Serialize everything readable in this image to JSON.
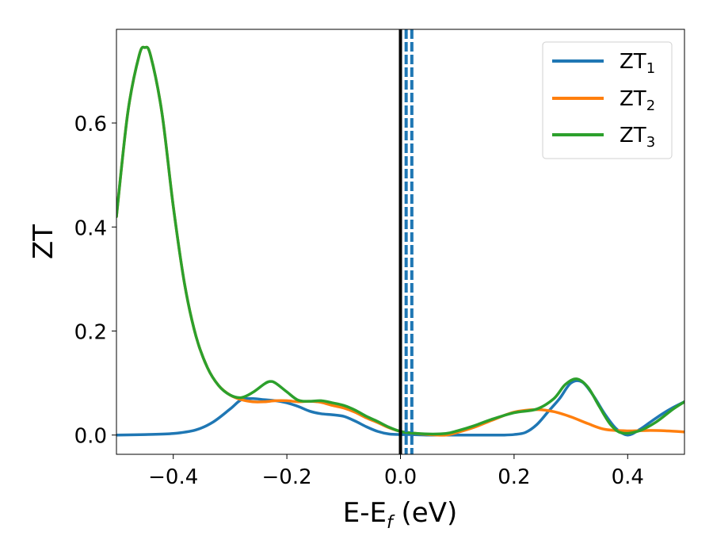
{
  "chart_data": {
    "type": "line",
    "xlabel": "E-E",
    "xlabel_sub": "f",
    "xlabel_unit": " (eV)",
    "ylabel": "ZT",
    "xlim": [
      -0.5,
      0.5
    ],
    "ylim": [
      -0.037,
      0.78
    ],
    "xticks": [
      -0.4,
      -0.2,
      0.0,
      0.2,
      0.4
    ],
    "xtick_labels": [
      "−0.4",
      "−0.2",
      "0.0",
      "0.2",
      "0.4"
    ],
    "yticks": [
      0.0,
      0.2,
      0.4,
      0.6
    ],
    "ytick_labels": [
      "0.0",
      "0.2",
      "0.4",
      "0.6"
    ],
    "grid": false,
    "legend_position": "top-right",
    "vertical_lines": [
      {
        "x": 0.0,
        "style": "solid",
        "color": "#000000"
      },
      {
        "x": 0.01,
        "style": "dashed",
        "color": "#1f77b4"
      },
      {
        "x": 0.02,
        "style": "dashed",
        "color": "#1f77b4"
      }
    ],
    "series": [
      {
        "name": "ZT",
        "name_sub": "1",
        "color": "#1f77b4",
        "x": [
          -0.5,
          -0.45,
          -0.4,
          -0.36,
          -0.33,
          -0.3,
          -0.28,
          -0.26,
          -0.24,
          -0.22,
          -0.2,
          -0.18,
          -0.16,
          -0.14,
          -0.12,
          -0.1,
          -0.08,
          -0.06,
          -0.04,
          -0.02,
          0.0,
          0.02,
          0.05,
          0.1,
          0.15,
          0.18,
          0.2,
          0.22,
          0.24,
          0.26,
          0.28,
          0.3,
          0.32,
          0.34,
          0.36,
          0.38,
          0.4,
          0.42,
          0.44,
          0.46,
          0.48,
          0.5
        ],
        "y": [
          0.0,
          0.001,
          0.003,
          0.01,
          0.025,
          0.05,
          0.068,
          0.07,
          0.068,
          0.066,
          0.062,
          0.055,
          0.046,
          0.041,
          0.039,
          0.036,
          0.027,
          0.016,
          0.007,
          0.002,
          0.001,
          0.001,
          0.0,
          0.0,
          0.0,
          0.0,
          0.001,
          0.005,
          0.02,
          0.045,
          0.07,
          0.1,
          0.102,
          0.075,
          0.04,
          0.012,
          0.0,
          0.01,
          0.025,
          0.04,
          0.053,
          0.064
        ]
      },
      {
        "name": "ZT",
        "name_sub": "2",
        "color": "#ff7f0e",
        "x": [
          -0.5,
          -0.48,
          -0.46,
          -0.45,
          -0.44,
          -0.42,
          -0.4,
          -0.38,
          -0.36,
          -0.34,
          -0.32,
          -0.3,
          -0.28,
          -0.26,
          -0.24,
          -0.22,
          -0.2,
          -0.18,
          -0.16,
          -0.14,
          -0.12,
          -0.1,
          -0.08,
          -0.06,
          -0.04,
          -0.02,
          0.0,
          0.02,
          0.05,
          0.08,
          0.1,
          0.13,
          0.16,
          0.2,
          0.24,
          0.27,
          0.3,
          0.33,
          0.36,
          0.4,
          0.44,
          0.47,
          0.5
        ],
        "y": [
          0.42,
          0.62,
          0.73,
          0.745,
          0.73,
          0.62,
          0.44,
          0.29,
          0.19,
          0.13,
          0.095,
          0.077,
          0.068,
          0.064,
          0.064,
          0.066,
          0.066,
          0.064,
          0.065,
          0.063,
          0.057,
          0.052,
          0.044,
          0.033,
          0.024,
          0.014,
          0.007,
          0.004,
          0.001,
          0.0,
          0.005,
          0.015,
          0.028,
          0.044,
          0.049,
          0.045,
          0.035,
          0.022,
          0.011,
          0.008,
          0.009,
          0.008,
          0.006
        ]
      },
      {
        "name": "ZT",
        "name_sub": "3",
        "color": "#2ca02c",
        "x": [
          -0.5,
          -0.48,
          -0.46,
          -0.45,
          -0.44,
          -0.42,
          -0.4,
          -0.38,
          -0.36,
          -0.34,
          -0.32,
          -0.3,
          -0.28,
          -0.26,
          -0.24,
          -0.23,
          -0.22,
          -0.2,
          -0.18,
          -0.16,
          -0.14,
          -0.12,
          -0.1,
          -0.08,
          -0.06,
          -0.04,
          -0.02,
          0.0,
          0.02,
          0.05,
          0.08,
          0.1,
          0.13,
          0.16,
          0.2,
          0.24,
          0.27,
          0.29,
          0.31,
          0.33,
          0.35,
          0.37,
          0.39,
          0.42,
          0.45,
          0.48,
          0.5
        ],
        "y": [
          0.42,
          0.62,
          0.73,
          0.745,
          0.73,
          0.62,
          0.44,
          0.29,
          0.19,
          0.13,
          0.095,
          0.077,
          0.072,
          0.082,
          0.098,
          0.103,
          0.1,
          0.083,
          0.067,
          0.065,
          0.066,
          0.062,
          0.057,
          0.048,
          0.036,
          0.026,
          0.015,
          0.007,
          0.004,
          0.002,
          0.003,
          0.008,
          0.018,
          0.03,
          0.043,
          0.05,
          0.07,
          0.097,
          0.108,
          0.092,
          0.055,
          0.02,
          0.004,
          0.008,
          0.025,
          0.05,
          0.064
        ]
      }
    ]
  }
}
